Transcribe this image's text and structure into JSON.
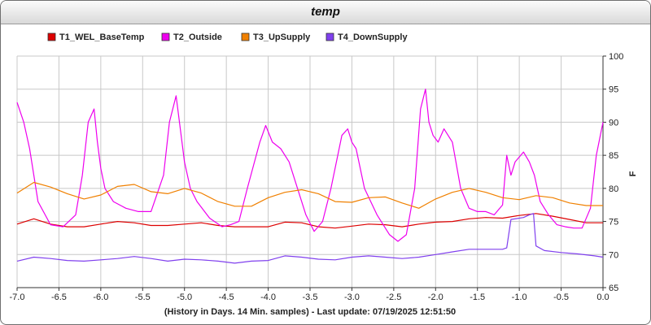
{
  "chart_data": {
    "type": "line",
    "title": "temp",
    "xlabel": "(History in Days. 14 Min. samples) - Last update: 07/19/2025 12:51:50",
    "ylabel": "F",
    "xlim": [
      -7.0,
      0.0
    ],
    "ylim": [
      65,
      100
    ],
    "x_ticks": [
      -7.0,
      -6.5,
      -6.0,
      -5.5,
      -5.0,
      -4.5,
      -4.0,
      -3.5,
      -3.0,
      -2.5,
      -2.0,
      -1.5,
      -1.0,
      -0.5,
      0.0
    ],
    "x_tick_labels": [
      "-7.0",
      "-6.5",
      "-6.0",
      "-5.5",
      "-5.0",
      "-4.5",
      "-4.0",
      "-3.5",
      "-3.0",
      "-2.5",
      "-2.0",
      "-1.5",
      "-1.0",
      "-0.5",
      "0.0"
    ],
    "y_ticks": [
      65,
      70,
      75,
      80,
      85,
      90,
      95,
      100
    ],
    "grid": true,
    "legend_position": "top",
    "series": [
      {
        "name": "T1_WEL_BaseTemp",
        "color": "#dd0000",
        "x": [
          -7.0,
          -6.8,
          -6.6,
          -6.4,
          -6.2,
          -6.0,
          -5.8,
          -5.6,
          -5.4,
          -5.2,
          -5.0,
          -4.8,
          -4.6,
          -4.4,
          -4.2,
          -4.0,
          -3.8,
          -3.6,
          -3.4,
          -3.2,
          -3.0,
          -2.8,
          -2.6,
          -2.4,
          -2.2,
          -2.0,
          -1.8,
          -1.6,
          -1.4,
          -1.2,
          -1.0,
          -0.8,
          -0.6,
          -0.4,
          -0.2,
          0.0
        ],
        "y": [
          74.6,
          75.4,
          74.6,
          74.2,
          74.2,
          74.6,
          75.0,
          74.8,
          74.4,
          74.4,
          74.6,
          74.8,
          74.4,
          74.2,
          74.2,
          74.2,
          74.9,
          74.8,
          74.2,
          74.0,
          74.3,
          74.6,
          74.5,
          74.2,
          74.6,
          74.9,
          75.0,
          75.4,
          75.6,
          75.5,
          75.9,
          76.2,
          75.8,
          75.3,
          74.8,
          74.8
        ]
      },
      {
        "name": "T2_Outside",
        "color": "#ee00ee",
        "x": [
          -7.0,
          -6.92,
          -6.85,
          -6.75,
          -6.6,
          -6.45,
          -6.3,
          -6.22,
          -6.15,
          -6.08,
          -6.04,
          -6.0,
          -5.95,
          -5.85,
          -5.7,
          -5.55,
          -5.4,
          -5.25,
          -5.18,
          -5.1,
          -5.04,
          -5.0,
          -4.93,
          -4.85,
          -4.7,
          -4.55,
          -4.45,
          -4.35,
          -4.25,
          -4.1,
          -4.03,
          -3.95,
          -3.85,
          -3.75,
          -3.65,
          -3.55,
          -3.45,
          -3.35,
          -3.25,
          -3.12,
          -3.05,
          -3.0,
          -2.95,
          -2.85,
          -2.7,
          -2.55,
          -2.45,
          -2.35,
          -2.25,
          -2.18,
          -2.12,
          -2.08,
          -2.03,
          -1.97,
          -1.9,
          -1.8,
          -1.7,
          -1.6,
          -1.5,
          -1.4,
          -1.3,
          -1.2,
          -1.15,
          -1.1,
          -1.05,
          -0.95,
          -0.88,
          -0.82,
          -0.75,
          -0.65,
          -0.55,
          -0.45,
          -0.35,
          -0.25,
          -0.15,
          -0.08,
          0.0
        ],
        "y": [
          93,
          90,
          86,
          78,
          74.5,
          74.2,
          76,
          82,
          90,
          92,
          87,
          83,
          80,
          78,
          77,
          76.5,
          76.5,
          82,
          90,
          94,
          88,
          84,
          80,
          78,
          75.5,
          74.2,
          74.5,
          75,
          80,
          87,
          89.5,
          87,
          86,
          84,
          80,
          76,
          73.5,
          75,
          80,
          88,
          89,
          87,
          86,
          80,
          76,
          73,
          72,
          73,
          80,
          92,
          95,
          90,
          88,
          87,
          89,
          87,
          80,
          77,
          76.5,
          76.5,
          76,
          77.5,
          85,
          82,
          84,
          85.5,
          84,
          82,
          78,
          76,
          74.5,
          74.2,
          74,
          74,
          77,
          85,
          90
        ]
      },
      {
        "name": "T3_UpSupply",
        "color": "#f08000",
        "x": [
          -7.0,
          -6.8,
          -6.6,
          -6.4,
          -6.2,
          -6.0,
          -5.8,
          -5.6,
          -5.4,
          -5.2,
          -5.0,
          -4.8,
          -4.6,
          -4.4,
          -4.2,
          -4.0,
          -3.8,
          -3.6,
          -3.4,
          -3.2,
          -3.0,
          -2.8,
          -2.6,
          -2.4,
          -2.2,
          -2.0,
          -1.8,
          -1.6,
          -1.4,
          -1.2,
          -1.0,
          -0.8,
          -0.6,
          -0.4,
          -0.2,
          0.0
        ],
        "y": [
          79.3,
          80.9,
          80.2,
          79.2,
          78.4,
          79.0,
          80.3,
          80.6,
          79.5,
          79.2,
          80.0,
          79.3,
          78.0,
          77.3,
          77.3,
          78.6,
          79.4,
          79.8,
          79.2,
          78.0,
          77.9,
          78.6,
          78.7,
          77.8,
          77.0,
          78.4,
          79.4,
          80.0,
          79.4,
          78.6,
          78.3,
          78.9,
          78.6,
          77.8,
          77.4,
          77.4
        ]
      },
      {
        "name": "T4_DownSupply",
        "color": "#8040ee",
        "x": [
          -7.0,
          -6.8,
          -6.6,
          -6.4,
          -6.2,
          -6.0,
          -5.8,
          -5.6,
          -5.4,
          -5.2,
          -5.0,
          -4.8,
          -4.6,
          -4.4,
          -4.2,
          -4.0,
          -3.8,
          -3.6,
          -3.4,
          -3.2,
          -3.0,
          -2.8,
          -2.6,
          -2.4,
          -2.2,
          -2.0,
          -1.8,
          -1.6,
          -1.4,
          -1.2,
          -1.15,
          -1.1,
          -0.95,
          -0.88,
          -0.83,
          -0.8,
          -0.7,
          -0.5,
          -0.3,
          -0.1,
          0.0
        ],
        "y": [
          69.0,
          69.6,
          69.4,
          69.1,
          69.0,
          69.2,
          69.4,
          69.7,
          69.4,
          69.0,
          69.3,
          69.2,
          69.0,
          68.7,
          69.0,
          69.1,
          69.8,
          69.6,
          69.3,
          69.2,
          69.6,
          69.8,
          69.6,
          69.4,
          69.6,
          70.0,
          70.4,
          70.8,
          70.8,
          70.8,
          71.0,
          75.3,
          75.6,
          76.0,
          76.2,
          71.3,
          70.6,
          70.3,
          70.1,
          69.8,
          69.6
        ]
      }
    ]
  }
}
